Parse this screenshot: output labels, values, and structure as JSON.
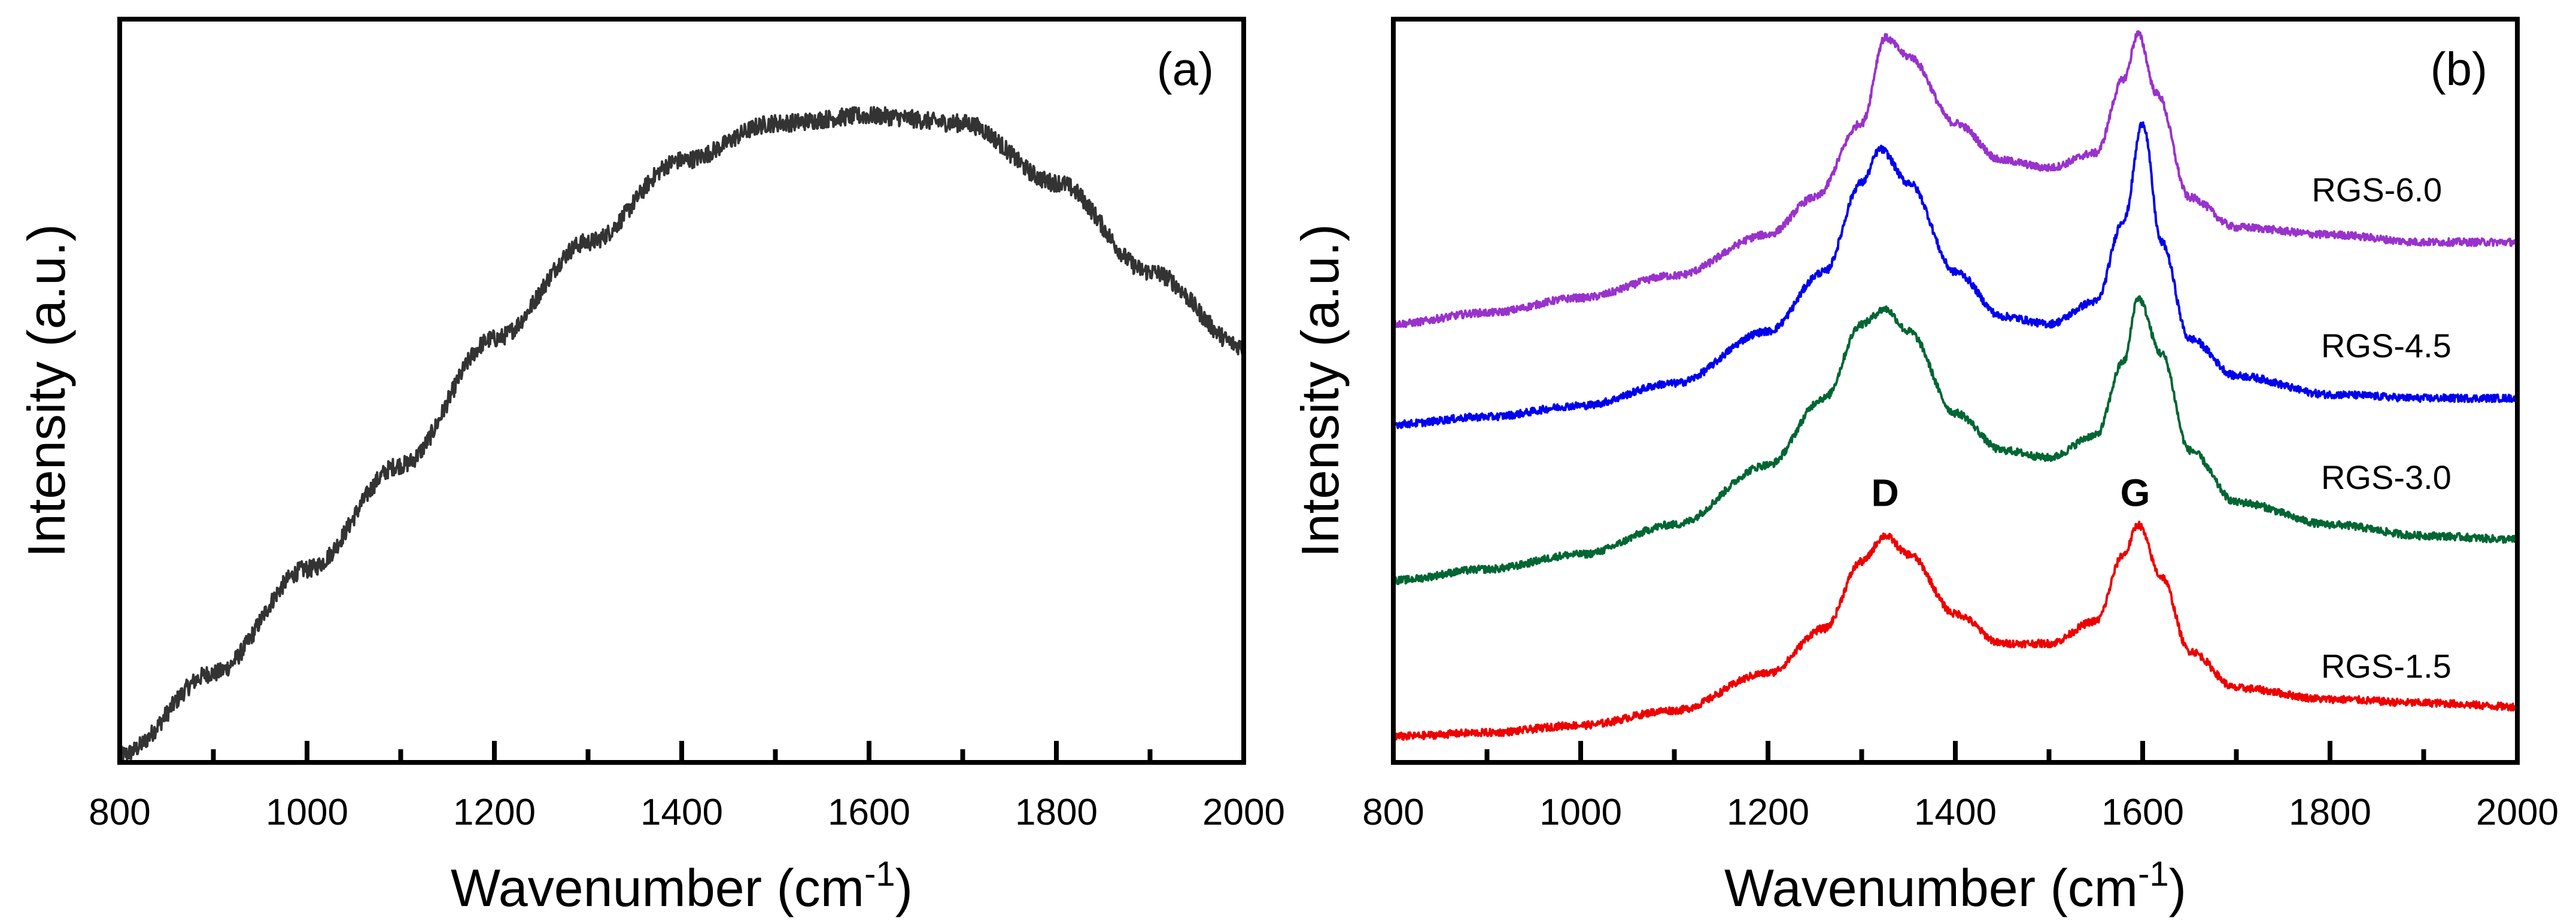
{
  "chart_data": [
    {
      "type": "line",
      "panel_label": "(a)",
      "xlabel": "Wavenumber (cm",
      "xlabel_sup": "-1",
      "xlabel_end": ")",
      "ylabel": "Intensity (a.u.)",
      "xlim": [
        800,
        2000
      ],
      "ylim": [
        0,
        1
      ],
      "y_tick_labels": false,
      "x_major_ticks": [
        800,
        1000,
        1200,
        1400,
        1600,
        1800,
        2000
      ],
      "x_minor_ticks": [
        900,
        1100,
        1300,
        1500,
        1700,
        1900
      ],
      "noise": 0.012,
      "series": [
        {
          "color": "#333333",
          "points": [
            [
              800,
              0.01
            ],
            [
              900,
              0.12
            ],
            [
              1000,
              0.26
            ],
            [
              1100,
              0.4
            ],
            [
              1200,
              0.57
            ],
            [
              1300,
              0.7
            ],
            [
              1400,
              0.81
            ],
            [
              1500,
              0.86
            ],
            [
              1600,
              0.87
            ],
            [
              1700,
              0.86
            ],
            [
              1800,
              0.78
            ],
            [
              1900,
              0.66
            ],
            [
              2000,
              0.56
            ]
          ]
        }
      ]
    },
    {
      "type": "line",
      "panel_label": "(b)",
      "xlabel": "Wavenumber (cm",
      "xlabel_sup": "-1",
      "xlabel_end": ")",
      "ylabel": "Intensity (a.u.)",
      "xlim": [
        800,
        2000
      ],
      "ylim": [
        0,
        1
      ],
      "y_tick_labels": false,
      "x_major_ticks": [
        800,
        1000,
        1200,
        1400,
        1600,
        1800,
        2000
      ],
      "x_minor_ticks": [
        900,
        1100,
        1300,
        1500,
        1700,
        1900
      ],
      "noise": 0.005,
      "annotations": [
        {
          "text": "D",
          "x": 1325,
          "y": 0.345
        },
        {
          "text": "G",
          "x": 1592,
          "y": 0.345
        }
      ],
      "series": [
        {
          "name": "RGS-6.0",
          "color": "#9932cc",
          "label_pos": [
            1850,
            0.755
          ],
          "points": [
            [
              800,
              0.59
            ],
            [
              900,
              0.605
            ],
            [
              1000,
              0.625
            ],
            [
              1100,
              0.655
            ],
            [
              1200,
              0.71
            ],
            [
              1250,
              0.76
            ],
            [
              1300,
              0.86
            ],
            [
              1325,
              0.975
            ],
            [
              1350,
              0.95
            ],
            [
              1400,
              0.86
            ],
            [
              1450,
              0.81
            ],
            [
              1500,
              0.8
            ],
            [
              1550,
              0.82
            ],
            [
              1580,
              0.92
            ],
            [
              1595,
              0.98
            ],
            [
              1615,
              0.9
            ],
            [
              1650,
              0.76
            ],
            [
              1700,
              0.72
            ],
            [
              1800,
              0.71
            ],
            [
              1900,
              0.7
            ],
            [
              2000,
              0.7
            ]
          ]
        },
        {
          "name": "RGS-4.5",
          "color": "#0000ee",
          "label_pos": [
            1860,
            0.545
          ],
          "points": [
            [
              800,
              0.455
            ],
            [
              900,
              0.465
            ],
            [
              1000,
              0.48
            ],
            [
              1100,
              0.51
            ],
            [
              1200,
              0.58
            ],
            [
              1260,
              0.66
            ],
            [
              1300,
              0.78
            ],
            [
              1320,
              0.825
            ],
            [
              1350,
              0.78
            ],
            [
              1400,
              0.66
            ],
            [
              1450,
              0.6
            ],
            [
              1500,
              0.59
            ],
            [
              1550,
              0.62
            ],
            [
              1580,
              0.73
            ],
            [
              1600,
              0.86
            ],
            [
              1620,
              0.7
            ],
            [
              1650,
              0.57
            ],
            [
              1700,
              0.52
            ],
            [
              1800,
              0.495
            ],
            [
              1900,
              0.49
            ],
            [
              2000,
              0.49
            ]
          ]
        },
        {
          "name": "RGS-3.0",
          "color": "#006633",
          "label_pos": [
            1860,
            0.368
          ],
          "points": [
            [
              800,
              0.245
            ],
            [
              900,
              0.26
            ],
            [
              1000,
              0.28
            ],
            [
              1100,
              0.32
            ],
            [
              1200,
              0.4
            ],
            [
              1260,
              0.49
            ],
            [
              1300,
              0.59
            ],
            [
              1325,
              0.61
            ],
            [
              1350,
              0.58
            ],
            [
              1400,
              0.47
            ],
            [
              1450,
              0.42
            ],
            [
              1500,
              0.41
            ],
            [
              1550,
              0.44
            ],
            [
              1580,
              0.54
            ],
            [
              1595,
              0.625
            ],
            [
              1620,
              0.55
            ],
            [
              1650,
              0.42
            ],
            [
              1700,
              0.35
            ],
            [
              1800,
              0.32
            ],
            [
              1900,
              0.305
            ],
            [
              2000,
              0.3
            ]
          ]
        },
        {
          "name": "RGS-1.5",
          "color": "#ee0000",
          "label_pos": [
            1860,
            0.114
          ],
          "points": [
            [
              800,
              0.035
            ],
            [
              900,
              0.04
            ],
            [
              1000,
              0.05
            ],
            [
              1100,
              0.07
            ],
            [
              1200,
              0.12
            ],
            [
              1260,
              0.18
            ],
            [
              1300,
              0.27
            ],
            [
              1325,
              0.305
            ],
            [
              1350,
              0.28
            ],
            [
              1400,
              0.2
            ],
            [
              1450,
              0.16
            ],
            [
              1500,
              0.16
            ],
            [
              1550,
              0.19
            ],
            [
              1580,
              0.28
            ],
            [
              1595,
              0.32
            ],
            [
              1620,
              0.25
            ],
            [
              1650,
              0.15
            ],
            [
              1700,
              0.1
            ],
            [
              1800,
              0.085
            ],
            [
              1900,
              0.08
            ],
            [
              2000,
              0.075
            ]
          ]
        }
      ]
    }
  ]
}
